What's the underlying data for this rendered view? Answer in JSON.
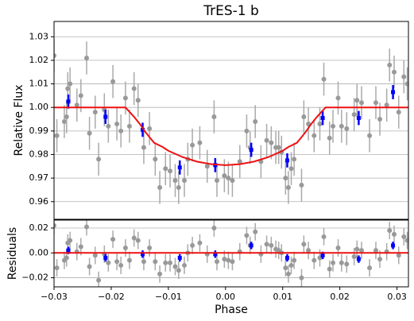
{
  "chart_data": [
    {
      "type": "scatter",
      "title": "TrES-1 b",
      "ylabel": "Relative Flux",
      "xlim": [
        -0.03,
        0.032
      ],
      "ylim": [
        0.9525,
        1.0365
      ],
      "yticks": [
        1.03,
        1.02,
        1.01,
        {
          "value": 1,
          "label": "1.00"
        },
        0.99,
        0.98,
        0.97,
        0.96
      ],
      "grid": true,
      "series": [
        {
          "style": "points",
          "color": "#999999",
          "error": 0.007,
          "x": [
            -0.03,
            -0.0295,
            -0.0282,
            -0.0278,
            -0.0276,
            -0.0272,
            -0.026,
            -0.0253,
            -0.0243,
            -0.0238,
            -0.0228,
            -0.0222,
            -0.0212,
            -0.0205,
            -0.0197,
            -0.019,
            -0.0183,
            -0.0175,
            -0.0168,
            -0.016,
            -0.0153,
            -0.0143,
            -0.0133,
            -0.0123,
            -0.0115,
            -0.0105,
            -0.0097,
            -0.0088,
            -0.0082,
            -0.0072,
            -0.0066,
            -0.0058,
            -0.0045,
            -0.0032,
            -0.002,
            -0.0015,
            -0.0002,
            0.0005,
            0.0012,
            0.0025,
            0.0037,
            0.0043,
            0.0052,
            0.0062,
            0.0072,
            0.008,
            0.0088,
            0.0093,
            0.0098,
            0.0105,
            0.011,
            0.0115,
            0.012,
            0.0133,
            0.0137,
            0.0145,
            0.0155,
            0.0165,
            0.0172,
            0.0182,
            0.0188,
            0.0197,
            0.0203,
            0.0212,
            0.0225,
            0.023,
            0.0238,
            0.0252,
            0.0263,
            0.027,
            0.0282,
            0.0287,
            0.0295,
            0.0303,
            0.0312,
            0.0318
          ],
          "values": [
            1.022,
            0.988,
            0.994,
            0.996,
            1.008,
            1.01,
            1.001,
            1.005,
            1.021,
            0.989,
            0.998,
            0.978,
            0.999,
            0.992,
            1.011,
            0.993,
            0.99,
            1.004,
            0.992,
            1.008,
            1.003,
            0.983,
            0.991,
            0.978,
            0.966,
            0.974,
            0.973,
            0.969,
            0.966,
            0.969,
            0.978,
            0.984,
            0.985,
            0.975,
            0.996,
            0.969,
            0.971,
            0.97,
            0.969,
            0.977,
            0.99,
            0.983,
            0.994,
            0.977,
            0.986,
            0.985,
            0.983,
            0.983,
            0.981,
            0.97,
            0.966,
            0.974,
            0.978,
            0.967,
            0.996,
            0.993,
            0.988,
            0.993,
            1.012,
            0.987,
            0.992,
            1.004,
            0.992,
            0.991,
            0.997,
            1.003,
            1.002,
            0.988,
            1.002,
            0.995,
            1.001,
            1.018,
            1.015,
            0.998,
            1.013,
            1.01
          ]
        },
        {
          "style": "squares",
          "color": "#0000ff",
          "error": 0.003,
          "x": [
            -0.0275,
            -0.021,
            -0.0145,
            -0.008,
            -0.0018,
            0.0045,
            0.0108,
            0.017,
            0.0233,
            0.0293
          ],
          "values": [
            1.0025,
            0.996,
            0.9905,
            0.9745,
            0.9755,
            0.982,
            0.9775,
            0.9955,
            0.9955,
            1.0065
          ]
        },
        {
          "style": "line",
          "color": "#ee1111",
          "x": [
            -0.03,
            -0.0175,
            -0.016,
            -0.015,
            -0.014,
            -0.0125,
            -0.011,
            -0.01,
            -0.0075,
            -0.005,
            -0.0025,
            0,
            0.0025,
            0.005,
            0.0075,
            0.01,
            0.011,
            0.0125,
            0.014,
            0.015,
            0.016,
            0.0175,
            0.032
          ],
          "values": [
            1,
            1,
            0.996,
            0.993,
            0.9895,
            0.985,
            0.9832,
            0.9816,
            0.9789,
            0.977,
            0.9759,
            0.9755,
            0.9759,
            0.977,
            0.9789,
            0.9816,
            0.9832,
            0.985,
            0.9895,
            0.993,
            0.996,
            1,
            1
          ]
        }
      ]
    },
    {
      "type": "scatter",
      "ylabel": "Residuals",
      "xlabel": "Phase",
      "xlim": [
        -0.03,
        0.032
      ],
      "ylim": [
        -0.0273,
        0.0264
      ],
      "yticks": [
        0.02,
        {
          "value": 0,
          "label": "0.00"
        },
        {
          "value": -0.02,
          "label": "−0.02"
        }
      ],
      "grid": true,
      "xticks": [
        {
          "value": -0.03,
          "label": "−0.03"
        },
        {
          "value": -0.02,
          "label": "−0.02"
        },
        {
          "value": -0.01,
          "label": "−0.01"
        },
        {
          "value": 0,
          "label": "0.00"
        },
        0.01,
        0.02,
        0.03
      ],
      "series": [
        {
          "style": "points",
          "color": "#999999",
          "error": 0.007,
          "x": [
            -0.03,
            -0.0295,
            -0.0282,
            -0.0278,
            -0.0276,
            -0.0272,
            -0.026,
            -0.0253,
            -0.0243,
            -0.0238,
            -0.0228,
            -0.0222,
            -0.0212,
            -0.0205,
            -0.0197,
            -0.019,
            -0.0183,
            -0.0175,
            -0.0168,
            -0.016,
            -0.0153,
            -0.0143,
            -0.0133,
            -0.0123,
            -0.0115,
            -0.0105,
            -0.0097,
            -0.0088,
            -0.0082,
            -0.0072,
            -0.0066,
            -0.0058,
            -0.0045,
            -0.0032,
            -0.002,
            -0.0015,
            -0.0002,
            0.0005,
            0.0012,
            0.0025,
            0.0037,
            0.0043,
            0.0052,
            0.0062,
            0.0072,
            0.008,
            0.0088,
            0.0093,
            0.0098,
            0.0105,
            0.011,
            0.0115,
            0.012,
            0.0133,
            0.0137,
            0.0145,
            0.0155,
            0.0165,
            0.0172,
            0.0182,
            0.0188,
            0.0197,
            0.0203,
            0.0212,
            0.0225,
            0.023,
            0.0238,
            0.0252,
            0.0263,
            0.027,
            0.0282,
            0.0287,
            0.0295,
            0.0303,
            0.0312,
            0.0318
          ],
          "values": [
            0.022,
            -0.012,
            -0.006,
            -0.004,
            0.008,
            0.01,
            0.001,
            0.005,
            0.021,
            -0.011,
            -0.002,
            -0.022,
            -0.001,
            -0.008,
            0.011,
            -0.007,
            -0.01,
            0.004,
            -0.006,
            0.012,
            0.01,
            -0.007,
            0.004,
            -0.007,
            -0.017,
            -0.008,
            -0.008,
            -0.011,
            -0.014,
            -0.01,
            0,
            0.006,
            0.008,
            -0.001,
            0.02,
            -0.007,
            -0.005,
            -0.006,
            -0.007,
            0.001,
            0.014,
            0.006,
            0.017,
            -0.001,
            0.007,
            0.006,
            0.003,
            0.002,
            0,
            -0.012,
            -0.017,
            -0.01,
            -0.006,
            -0.02,
            0.007,
            0.002,
            -0.006,
            -0.004,
            0.013,
            -0.013,
            -0.008,
            0.004,
            -0.008,
            -0.009,
            -0.003,
            0.003,
            0.002,
            -0.012,
            0.002,
            -0.005,
            0.001,
            0.018,
            0.015,
            -0.002,
            0.013,
            0.01
          ]
        },
        {
          "style": "squares",
          "color": "#0000ff",
          "error": 0.003,
          "x": [
            -0.0275,
            -0.021,
            -0.0145,
            -0.008,
            -0.0018,
            0.0045,
            0.0108,
            0.017,
            0.0233,
            0.0293
          ],
          "values": [
            0.002,
            -0.004,
            -0.001,
            -0.004,
            -0.001,
            0.006,
            -0.004,
            -0.002,
            -0.005,
            0.006
          ]
        },
        {
          "style": "line",
          "color": "#ee1111",
          "x": [
            -0.03,
            0.032
          ],
          "values": [
            0,
            0
          ]
        }
      ]
    }
  ]
}
